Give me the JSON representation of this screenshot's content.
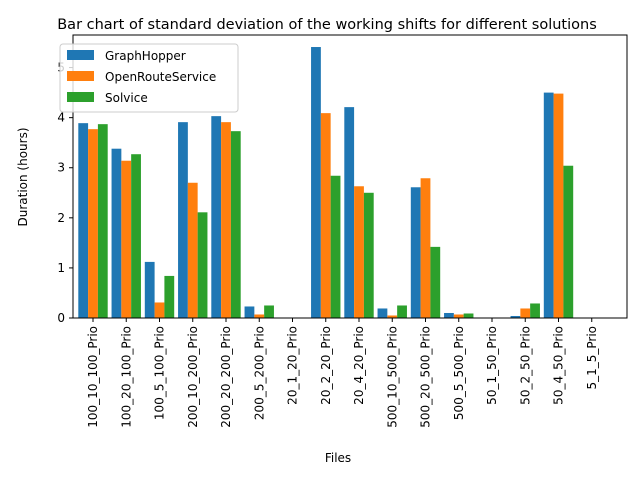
{
  "chart_data": {
    "type": "bar",
    "title": "Bar chart of standard deviation of the working shifts for different solutions",
    "xlabel": "Files",
    "ylabel": "Duration (hours)",
    "ylim": [
      0,
      5.65
    ],
    "yticks": [
      0,
      1,
      2,
      3,
      4,
      5
    ],
    "grid": false,
    "legend_position": "top-left",
    "categories": [
      "100_10_100_Prio",
      "100_20_100_Prio",
      "100_5_100_Prio",
      "200_10_200_Prio",
      "200_20_200_Prio",
      "200_5_200_Prio",
      "20_1_20_Prio",
      "20_2_20_Prio",
      "20_4_20_Prio",
      "500_10_500_Prio",
      "500_20_500_Prio",
      "500_5_500_Prio",
      "50_1_50_Prio",
      "50_2_50_Prio",
      "50_4_50_Prio",
      "5_1_5_Prio"
    ],
    "series": [
      {
        "name": "GraphHopper",
        "color": "#1f77b4",
        "values": [
          3.89,
          3.38,
          1.12,
          3.91,
          4.03,
          0.23,
          0.0,
          5.41,
          4.21,
          0.19,
          2.61,
          0.1,
          0.0,
          0.04,
          4.5,
          0.0
        ]
      },
      {
        "name": "OpenRouteService",
        "color": "#ff7f0e",
        "values": [
          3.77,
          3.14,
          0.31,
          2.7,
          3.91,
          0.07,
          0.0,
          4.09,
          2.63,
          0.05,
          2.79,
          0.07,
          0.0,
          0.19,
          4.48,
          0.0
        ]
      },
      {
        "name": "Solvice",
        "color": "#2ca02c",
        "values": [
          3.87,
          3.27,
          0.84,
          2.11,
          3.73,
          0.25,
          0.0,
          2.84,
          2.5,
          0.25,
          1.42,
          0.09,
          0.0,
          0.29,
          3.04,
          0.0
        ]
      }
    ]
  }
}
